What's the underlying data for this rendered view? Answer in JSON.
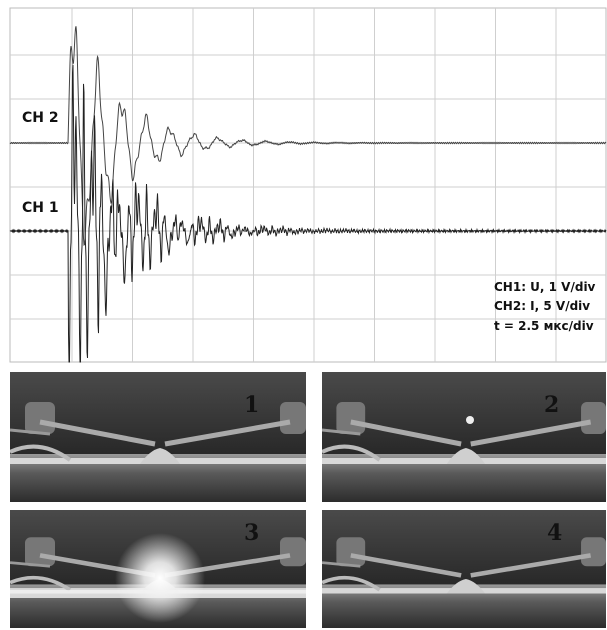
{
  "channels": [
    {
      "label": "CH 2"
    },
    {
      "label": "CH 1"
    }
  ],
  "settings": [
    "CH1: U, 1 V/div",
    "CH2: I, 5 V/div",
    "t = 2.5 мкс/div"
  ],
  "frames": [
    "1",
    "2",
    "3",
    "4"
  ]
}
